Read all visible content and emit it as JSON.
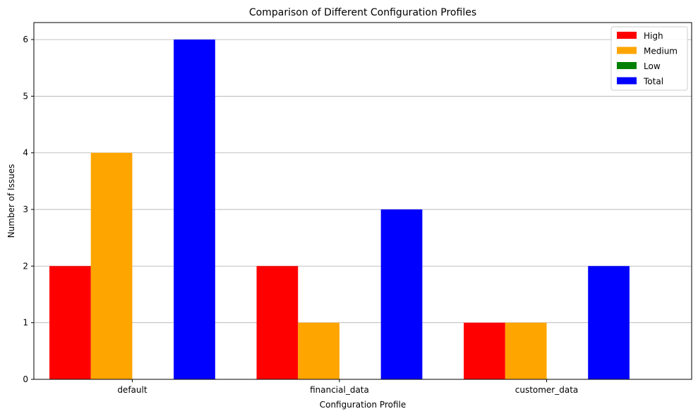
{
  "chart_data": {
    "type": "bar",
    "title": "Comparison of Different Configuration Profiles",
    "xlabel": "Configuration Profile",
    "ylabel": "Number of Issues",
    "categories": [
      "default",
      "financial_data",
      "customer_data"
    ],
    "series": [
      {
        "name": "High",
        "color": "#ff0000",
        "values": [
          2,
          2,
          1
        ]
      },
      {
        "name": "Medium",
        "color": "#ffa500",
        "values": [
          4,
          1,
          1
        ]
      },
      {
        "name": "Low",
        "color": "#008000",
        "values": [
          0,
          0,
          0
        ]
      },
      {
        "name": "Total",
        "color": "#0000ff",
        "values": [
          6,
          3,
          2
        ]
      }
    ],
    "yticks": [
      0,
      1,
      2,
      3,
      4,
      5,
      6
    ],
    "ylim": [
      0,
      6.3
    ],
    "grid": "y",
    "legend": "top-right"
  }
}
